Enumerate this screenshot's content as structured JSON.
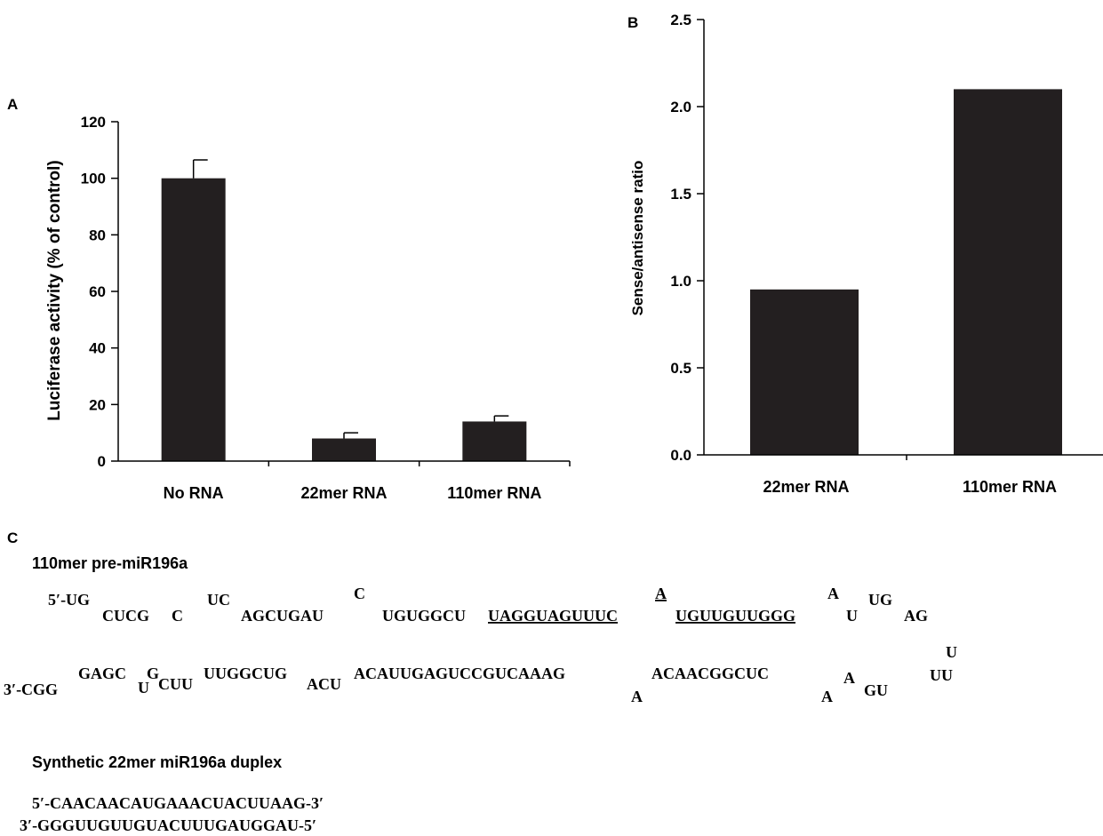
{
  "panels": {
    "a": "A",
    "b": "B",
    "c": "C"
  },
  "chart_data": [
    {
      "type": "bar",
      "panel": "A",
      "title": "",
      "xlabel": "",
      "ylabel": "Luciferase activity (% of control)",
      "categories": [
        "No RNA",
        "22mer RNA",
        "110mer RNA"
      ],
      "values": [
        100,
        8,
        14
      ],
      "error": [
        6.5,
        2,
        2
      ],
      "ylim": [
        0,
        120
      ],
      "yticks": [
        "0",
        "20",
        "40",
        "60",
        "80",
        "100",
        "120"
      ],
      "grid": false,
      "legend": "none"
    },
    {
      "type": "bar",
      "panel": "B",
      "title": "",
      "xlabel": "",
      "ylabel": "Sense/antisense ratio",
      "categories": [
        "22mer RNA",
        "110mer RNA"
      ],
      "values": [
        0.95,
        2.1
      ],
      "ylim": [
        0,
        2.5
      ],
      "yticks": [
        "0.0",
        "0.5",
        "1.0",
        "1.5",
        "2.0",
        "2.5"
      ],
      "grid": false,
      "legend": "none"
    }
  ],
  "panel_c": {
    "title1": "110mer pre-miR196a",
    "top": {
      "t1": "5′-UG",
      "t2": "CUCG",
      "t3": "C",
      "t4": "UC",
      "t5": "AGCUGAU",
      "t6": "C",
      "t7": "UGUGGCU",
      "t8": "UAGGUAGUUUC",
      "t9": "A",
      "t10": "UGUUGUUGGG",
      "t11": "A",
      "t12": "U",
      "t13": "UG",
      "t14": "AG"
    },
    "loop_u": "U",
    "bottom": {
      "b1": "GAGC",
      "b2": "G",
      "b3": "U",
      "b4": "CUU",
      "b5": "UUGGCUG",
      "b6": "ACU",
      "b7": "ACAUUGAGUCCGUCAAAG",
      "b8": "A",
      "b9": "ACAACGGCUC",
      "b10": "A",
      "b11": "A",
      "b12": "GU",
      "b13": "UU",
      "b14": "3′-CGG"
    },
    "title2": "Synthetic 22mer miR196a duplex",
    "duplex_top": "5′-CAACAACAUGAAACUACUUAAG-3′",
    "duplex_bottom": "3′-GGGUUGUUGUACUUUGAUGGAU-5′"
  }
}
